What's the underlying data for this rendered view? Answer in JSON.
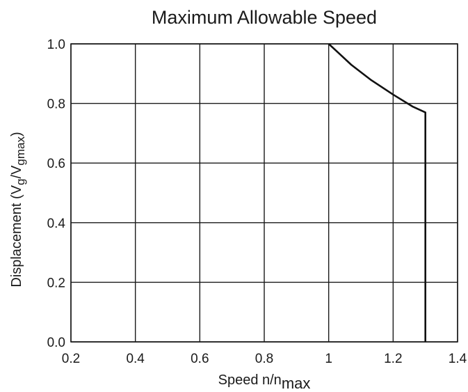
{
  "chart_data": {
    "type": "line",
    "title": "Maximum Allowable Speed",
    "xlabel": {
      "main": "Speed n/n",
      "sub": "max"
    },
    "ylabel": {
      "p1": "Displacement (V",
      "s1": "g",
      "p2": "/V",
      "s2": "gmax",
      "p3": ")"
    },
    "xlim": [
      0.2,
      1.4
    ],
    "ylim": [
      0.0,
      1.0
    ],
    "x_ticks": [
      "0.2",
      "0.4",
      "0.6",
      "0.8",
      "1",
      "1.2",
      "1.4"
    ],
    "y_ticks": [
      "0.0",
      "0.2",
      "0.4",
      "0.6",
      "0.8",
      "1.0"
    ],
    "grid": true,
    "series": [
      {
        "x": [
          1.0,
          1.03,
          1.07,
          1.13,
          1.2,
          1.26,
          1.3,
          1.3
        ],
        "y": [
          1.0,
          0.97,
          0.93,
          0.88,
          0.83,
          0.79,
          0.77,
          0.0
        ]
      }
    ]
  }
}
